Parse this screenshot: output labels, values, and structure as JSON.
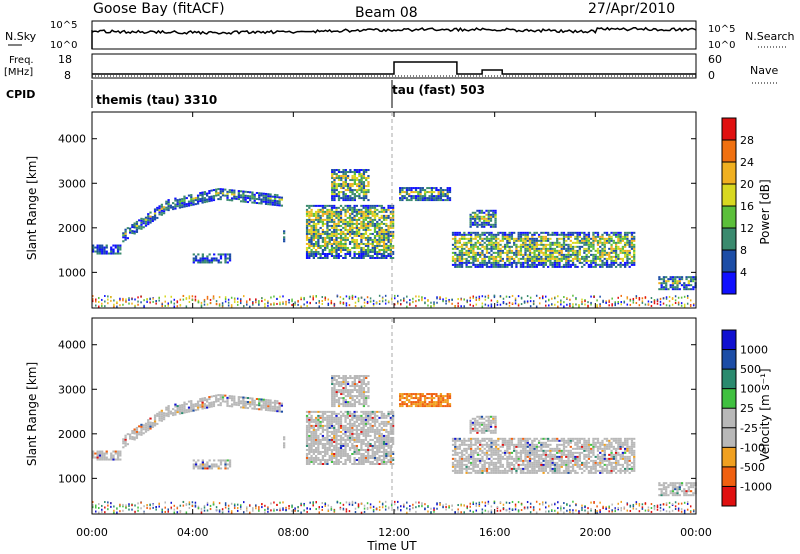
{
  "header": {
    "station": "Goose Bay (fitACF)",
    "beam": "Beam 08",
    "date": "27/Apr/2010"
  },
  "meta_panels": {
    "nsky_label": "N.Sky",
    "nsky_ticks": [
      "10^5",
      "10^0"
    ],
    "nsearch_label": "N.Search",
    "nsearch_ticks": [
      "10^5",
      "10^0"
    ],
    "freq_label": "Freq.",
    "freq_unit": "[MHz]",
    "freq_ticks": [
      18,
      8
    ],
    "nave_label": "Nave",
    "nave_ticks": [
      60,
      0
    ],
    "cpid_label": "CPID",
    "cpid_modes": [
      {
        "name": "themis (tau) 3310",
        "start_hour": 0
      },
      {
        "name": "tau (fast) 503",
        "start_hour": 12
      }
    ]
  },
  "chart_data": [
    {
      "type": "heatmap",
      "panel": "power",
      "ylabel": "Slant Range [km]",
      "yticks": [
        1000,
        2000,
        3000,
        4000
      ],
      "ylim": [
        200,
        4600
      ],
      "xlim": [
        0,
        24
      ],
      "colorbar_label": "Power [dB]",
      "colorbar_ticks": [
        4,
        8,
        12,
        16,
        20,
        24,
        28
      ],
      "colorbar_colors": [
        "#1010ff",
        "#1c4da6",
        "#3a8a6e",
        "#5bbf3a",
        "#d8d820",
        "#f0b020",
        "#f07010",
        "#e01010"
      ],
      "echo_bands": [
        {
          "t0": 0.0,
          "t1": 1.1,
          "r0": 1400,
          "r1": 1600
        },
        {
          "t0": 1.2,
          "t1": 7.6,
          "arc": [
            [
              1.2,
              1800
            ],
            [
              3.0,
              2500
            ],
            [
              5.0,
              2750
            ],
            [
              7.5,
              2600
            ]
          ],
          "width": 250
        },
        {
          "t0": 4.0,
          "t1": 5.5,
          "r0": 1200,
          "r1": 1400
        },
        {
          "t0": 8.5,
          "t1": 12.0,
          "r0": 1300,
          "r1": 2500
        },
        {
          "t0": 9.5,
          "t1": 11.0,
          "r0": 2600,
          "r1": 3300
        },
        {
          "t0": 12.2,
          "t1": 14.2,
          "r0": 2600,
          "r1": 2900
        },
        {
          "t0": 14.3,
          "t1": 21.5,
          "r0": 1100,
          "r1": 1900
        },
        {
          "t0": 15.0,
          "t1": 16.0,
          "r0": 2000,
          "r1": 2400
        },
        {
          "t0": 22.5,
          "t1": 24.0,
          "r0": 600,
          "r1": 900
        }
      ]
    },
    {
      "type": "heatmap",
      "panel": "velocity",
      "ylabel": "Slant Range [km]",
      "yticks": [
        1000,
        2000,
        3000,
        4000
      ],
      "ylim": [
        200,
        4600
      ],
      "xlim": [
        0,
        24
      ],
      "xlabel": "Time UT",
      "xticks": [
        "00:00",
        "04:00",
        "08:00",
        "12:00",
        "16:00",
        "20:00",
        "00:00"
      ],
      "colorbar_label": "Velocity [m s⁻¹]",
      "colorbar_ticks": [
        "1000",
        "500",
        "100",
        "25",
        "-25",
        "-100",
        "-500",
        "-1000"
      ],
      "colorbar_colors": [
        "#1010d0",
        "#1c4da6",
        "#2a8a6e",
        "#40c040",
        "#b8b8b8",
        "#b8b8b8",
        "#f0a020",
        "#f06010",
        "#e01010"
      ]
    }
  ]
}
